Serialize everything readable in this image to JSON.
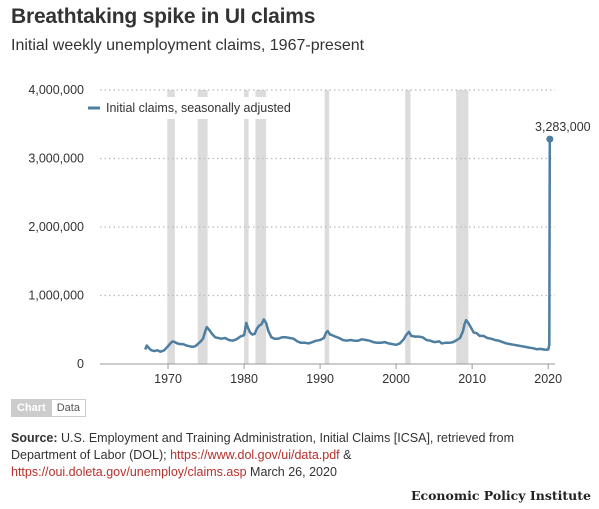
{
  "header": {
    "title": "Breathtaking spike in UI claims",
    "subtitle": "Initial weekly unemployment claims, 1967-present"
  },
  "colors": {
    "series": "#4e7ea0",
    "recession": "#dcdcdc",
    "grid": "#bbbbbb",
    "axis": "#999999",
    "link": "#b5312c"
  },
  "chart_data": {
    "type": "line",
    "title": "Breathtaking spike in UI claims",
    "subtitle": "Initial weekly unemployment claims, 1967-present",
    "xlabel": "",
    "ylabel": "",
    "xlim": [
      1967,
      2020.25
    ],
    "ylim": [
      0,
      4000000
    ],
    "yticks": [
      0,
      1000000,
      2000000,
      3000000,
      4000000
    ],
    "ytick_labels": [
      "0",
      "1,000,000",
      "2,000,000",
      "3,000,000",
      "4,000,000"
    ],
    "xticks": [
      1970,
      1980,
      1990,
      2000,
      2010,
      2020
    ],
    "xtick_labels": [
      "1970",
      "1980",
      "1990",
      "2000",
      "2010",
      "2020"
    ],
    "grid": "horizontal dotted",
    "legend": {
      "placement": "top-left",
      "entries": [
        "Initial claims, seasonally adjusted"
      ]
    },
    "recessions": [
      [
        1969.9,
        1970.9
      ],
      [
        1973.9,
        1975.2
      ],
      [
        1980.0,
        1980.6
      ],
      [
        1981.5,
        1982.9
      ],
      [
        1990.6,
        1991.2
      ],
      [
        2001.2,
        2001.9
      ],
      [
        2007.9,
        2009.5
      ]
    ],
    "annotation": {
      "x": 2020.22,
      "y": 3283000,
      "label": "3,283,000"
    },
    "series": [
      {
        "name": "Initial claims, seasonally adjusted",
        "x": [
          1967.0,
          1967.2,
          1967.5,
          1967.8,
          1968.2,
          1968.6,
          1969.0,
          1969.5,
          1970.0,
          1970.3,
          1970.6,
          1970.9,
          1971.2,
          1971.6,
          1972.0,
          1972.4,
          1972.8,
          1973.2,
          1973.6,
          1974.0,
          1974.3,
          1974.6,
          1974.9,
          1975.1,
          1975.4,
          1975.8,
          1976.2,
          1976.6,
          1977.0,
          1977.5,
          1978.0,
          1978.5,
          1979.0,
          1979.5,
          1980.0,
          1980.3,
          1980.5,
          1980.8,
          1981.1,
          1981.4,
          1981.7,
          1982.0,
          1982.3,
          1982.6,
          1982.9,
          1983.2,
          1983.6,
          1984.0,
          1984.5,
          1985.0,
          1985.5,
          1986.0,
          1986.5,
          1987.0,
          1987.5,
          1988.0,
          1988.5,
          1989.0,
          1989.5,
          1990.0,
          1990.5,
          1990.8,
          1991.0,
          1991.3,
          1991.6,
          1992.0,
          1992.5,
          1993.0,
          1993.5,
          1994.0,
          1994.5,
          1995.0,
          1995.5,
          1996.0,
          1996.5,
          1997.0,
          1997.5,
          1998.0,
          1998.5,
          1999.0,
          1999.5,
          2000.0,
          2000.5,
          2001.0,
          2001.3,
          2001.7,
          2002.0,
          2002.5,
          2003.0,
          2003.5,
          2004.0,
          2004.5,
          2005.0,
          2005.7,
          2006.0,
          2006.5,
          2007.0,
          2007.5,
          2008.0,
          2008.4,
          2008.8,
          2009.0,
          2009.2,
          2009.5,
          2009.8,
          2010.2,
          2010.6,
          2011.0,
          2011.5,
          2012.0,
          2012.5,
          2013.0,
          2013.5,
          2014.0,
          2014.5,
          2015.0,
          2015.5,
          2016.0,
          2016.5,
          2017.0,
          2017.5,
          2018.0,
          2018.5,
          2019.0,
          2019.5,
          2020.0,
          2020.15,
          2020.19,
          2020.22
        ],
        "values": [
          210000,
          270000,
          230000,
          200000,
          190000,
          200000,
          180000,
          200000,
          260000,
          300000,
          330000,
          320000,
          300000,
          290000,
          290000,
          270000,
          260000,
          250000,
          260000,
          300000,
          330000,
          370000,
          480000,
          540000,
          500000,
          440000,
          390000,
          380000,
          370000,
          380000,
          350000,
          340000,
          360000,
          400000,
          420000,
          600000,
          530000,
          460000,
          430000,
          440000,
          520000,
          560000,
          580000,
          650000,
          600000,
          480000,
          390000,
          370000,
          370000,
          390000,
          390000,
          380000,
          370000,
          330000,
          310000,
          310000,
          300000,
          320000,
          340000,
          350000,
          380000,
          460000,
          480000,
          430000,
          420000,
          400000,
          380000,
          350000,
          340000,
          350000,
          340000,
          340000,
          360000,
          350000,
          340000,
          320000,
          310000,
          310000,
          320000,
          300000,
          290000,
          280000,
          300000,
          360000,
          420000,
          470000,
          410000,
          400000,
          400000,
          390000,
          350000,
          340000,
          320000,
          330000,
          300000,
          310000,
          310000,
          320000,
          350000,
          380000,
          480000,
          580000,
          640000,
          600000,
          540000,
          460000,
          450000,
          410000,
          410000,
          380000,
          370000,
          350000,
          340000,
          320000,
          300000,
          290000,
          280000,
          270000,
          260000,
          250000,
          240000,
          230000,
          215000,
          220000,
          210000,
          210000,
          281000,
          2200000,
          3283000
        ]
      }
    ]
  },
  "toggle": {
    "chart_label": "Chart",
    "data_label": "Data"
  },
  "source": {
    "label": "Source:",
    "text_before": "U.S. Employment and Training Administration, Initial Claims [ICSA], retrieved from Department of Labor (DOL);",
    "link1": "https://www.dol.gov/ui/data.pdf",
    "between": "&",
    "link2": "https://oui.doleta.gov/unemploy/claims.asp",
    "date": "March 26, 2020"
  },
  "brand": "Economic Policy Institute"
}
